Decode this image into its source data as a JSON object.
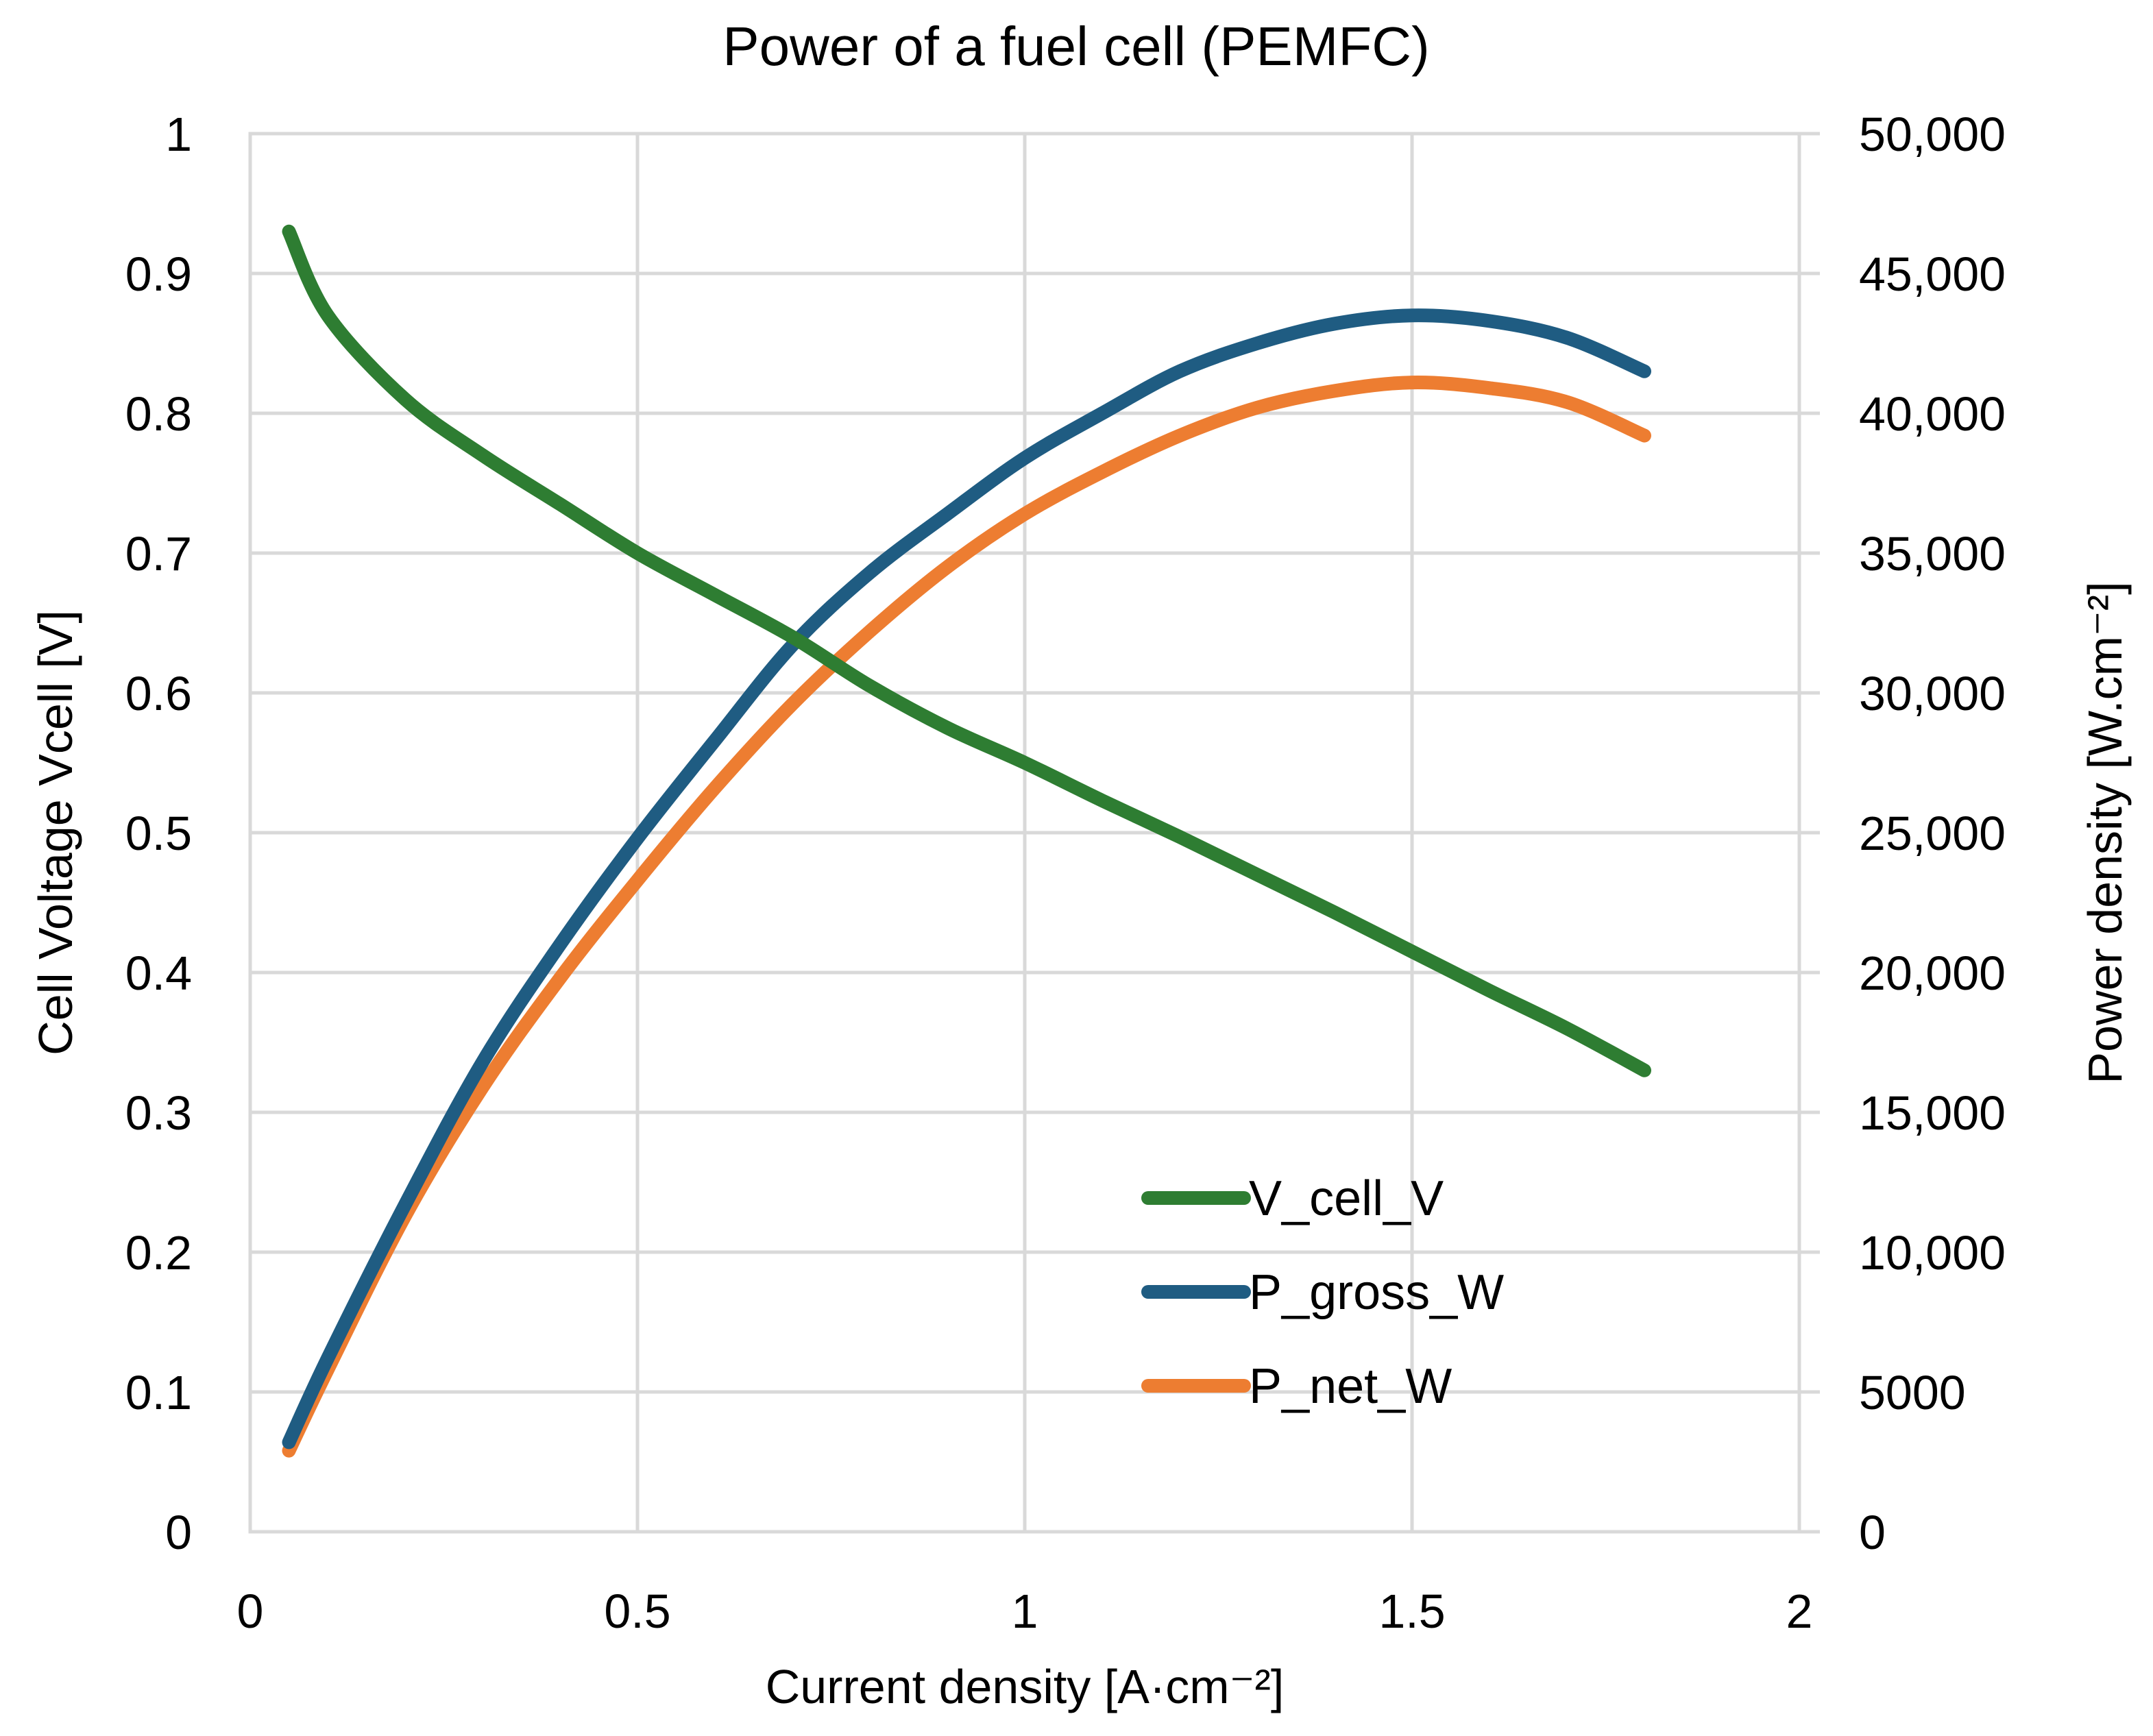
{
  "chart_data": {
    "type": "line",
    "title": "Power of a fuel cell (PEMFC)",
    "xlabel": "Current density [A·cm⁻²]",
    "ylabel_left": "Cell Voltage Vcell [V]",
    "ylabel_right": "Power density [W.cm⁻²]",
    "xlim": [
      0,
      2
    ],
    "ylim_left": [
      0,
      1
    ],
    "ylim_right": [
      0,
      50000
    ],
    "x_ticks": [
      "0",
      "0.5",
      "1",
      "1.5",
      "2"
    ],
    "y_left_ticks": [
      "0",
      "0.1",
      "0.2",
      "0.3",
      "0.4",
      "0.5",
      "0.6",
      "0.7",
      "0.8",
      "0.9",
      "1"
    ],
    "y_right_ticks": [
      "0",
      "5000",
      "10,000",
      "15,000",
      "20,000",
      "25,000",
      "30,000",
      "35,000",
      "40,000",
      "45,000",
      "50,000"
    ],
    "grid": true,
    "legend_position": "bottom-right",
    "series": [
      {
        "name": "V_cell_V",
        "axis": "left",
        "color": "#2e7d32",
        "x": [
          0.05,
          0.1,
          0.2,
          0.3,
          0.4,
          0.5,
          0.6,
          0.7,
          0.8,
          0.9,
          1.0,
          1.1,
          1.2,
          1.3,
          1.4,
          1.5,
          1.6,
          1.7,
          1.8
        ],
        "y": [
          0.93,
          0.87,
          0.81,
          0.77,
          0.735,
          0.7,
          0.67,
          0.64,
          0.605,
          0.575,
          0.55,
          0.523,
          0.497,
          0.47,
          0.443,
          0.415,
          0.387,
          0.36,
          0.33
        ]
      },
      {
        "name": "P_gross_W",
        "axis": "right",
        "color": "#1f5c82",
        "x": [
          0.05,
          0.1,
          0.2,
          0.3,
          0.4,
          0.5,
          0.6,
          0.7,
          0.8,
          0.9,
          1.0,
          1.1,
          1.2,
          1.3,
          1.4,
          1.5,
          1.6,
          1.7,
          1.8
        ],
        "y": [
          3200,
          6200,
          11700,
          16800,
          21000,
          24800,
          28300,
          31700,
          34300,
          36400,
          38400,
          40000,
          41500,
          42500,
          43200,
          43500,
          43300,
          42700,
          41500
        ]
      },
      {
        "name": "P_net_W",
        "axis": "right",
        "color": "#ed7d31",
        "x": [
          0.05,
          0.1,
          0.2,
          0.3,
          0.4,
          0.5,
          0.6,
          0.7,
          0.8,
          0.9,
          1.0,
          1.1,
          1.2,
          1.3,
          1.4,
          1.5,
          1.6,
          1.7,
          1.8
        ],
        "y": [
          2900,
          5800,
          11300,
          15900,
          19800,
          23300,
          26600,
          29600,
          32200,
          34500,
          36400,
          37900,
          39200,
          40200,
          40800,
          41100,
          40900,
          40400,
          39200
        ]
      }
    ]
  }
}
